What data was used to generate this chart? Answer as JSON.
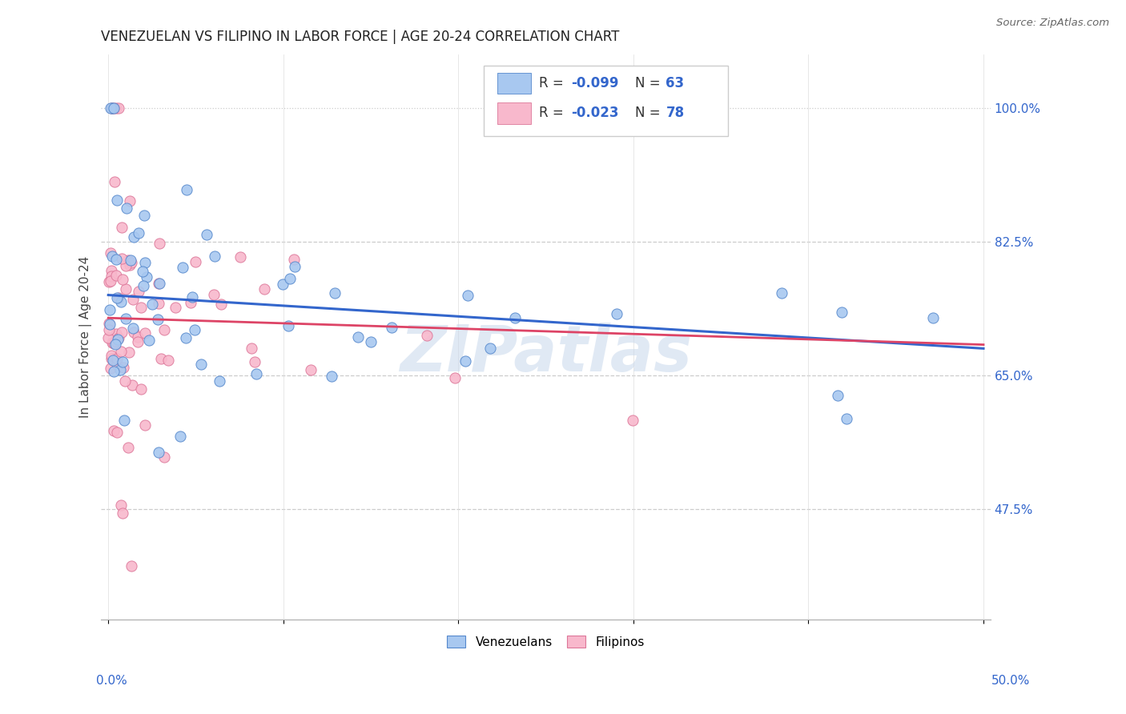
{
  "title": "VENEZUELAN VS FILIPINO IN LABOR FORCE | AGE 20-24 CORRELATION CHART",
  "source": "Source: ZipAtlas.com",
  "ylabel": "In Labor Force | Age 20-24",
  "ytick_values": [
    0.475,
    0.65,
    0.825,
    1.0
  ],
  "ytick_labels": [
    "47.5%",
    "65.0%",
    "82.5%",
    "100.0%"
  ],
  "xlim": [
    0.0,
    0.5
  ],
  "ylim": [
    0.33,
    1.07
  ],
  "legend_r_ven": "R = -0.099",
  "legend_n_ven": "N = 63",
  "legend_r_fil": "R = -0.023",
  "legend_n_fil": "N = 78",
  "ven_color": "#a8c8f0",
  "fil_color": "#f8b8cc",
  "ven_edge": "#5588cc",
  "fil_edge": "#dd7799",
  "trend_ven_color": "#3366cc",
  "trend_fil_color": "#dd4466",
  "watermark": "ZIPatlas",
  "background": "#ffffff",
  "grid_color": "#cccccc",
  "title_color": "#222222",
  "label_color": "#3366cc",
  "axis_label_color": "#444444"
}
